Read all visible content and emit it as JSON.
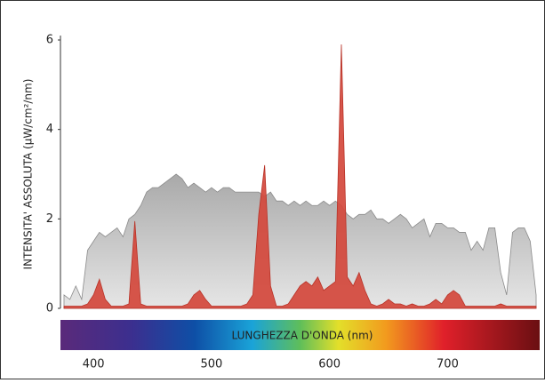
{
  "chart_data": {
    "type": "area",
    "y_label": "INTENSITA' ASSOLUTA (µW/cm²/nm)",
    "x_label": "LUNGHEZZA D'ONDA (nm)",
    "x": [
      375,
      380,
      385,
      390,
      395,
      400,
      405,
      410,
      415,
      420,
      425,
      430,
      435,
      440,
      445,
      450,
      455,
      460,
      465,
      470,
      475,
      480,
      485,
      490,
      495,
      500,
      505,
      510,
      515,
      520,
      525,
      530,
      535,
      540,
      545,
      550,
      555,
      560,
      565,
      570,
      575,
      580,
      585,
      590,
      595,
      600,
      605,
      610,
      615,
      620,
      625,
      630,
      635,
      640,
      645,
      650,
      655,
      660,
      665,
      670,
      675,
      680,
      685,
      690,
      695,
      700,
      705,
      710,
      715,
      720,
      725,
      730,
      735,
      740,
      745,
      750,
      755,
      760,
      765,
      770,
      775
    ],
    "series": [
      {
        "color": "#bdbdbd",
        "values": [
          0.3,
          0.2,
          0.5,
          0.2,
          1.3,
          1.5,
          1.7,
          1.6,
          1.7,
          1.8,
          1.6,
          2.0,
          2.1,
          2.3,
          2.6,
          2.7,
          2.7,
          2.8,
          2.9,
          3.0,
          2.9,
          2.7,
          2.8,
          2.7,
          2.6,
          2.7,
          2.6,
          2.7,
          2.7,
          2.6,
          2.6,
          2.6,
          2.6,
          2.6,
          2.5,
          2.6,
          2.4,
          2.4,
          2.3,
          2.4,
          2.3,
          2.4,
          2.3,
          2.3,
          2.4,
          2.3,
          2.4,
          2.3,
          2.1,
          2.0,
          2.1,
          2.1,
          2.2,
          2.0,
          2.0,
          1.9,
          2.0,
          2.1,
          2.0,
          1.8,
          1.9,
          2.0,
          1.6,
          1.9,
          1.9,
          1.8,
          1.8,
          1.7,
          1.7,
          1.3,
          1.5,
          1.3,
          1.8,
          1.8,
          0.8,
          0.3,
          1.7,
          1.8,
          1.8,
          1.5,
          0.3
        ]
      },
      {
        "color": "#d4483c",
        "values": [
          0.05,
          0.05,
          0.05,
          0.05,
          0.1,
          0.3,
          0.65,
          0.2,
          0.05,
          0.05,
          0.05,
          0.1,
          1.95,
          0.1,
          0.05,
          0.05,
          0.05,
          0.05,
          0.05,
          0.05,
          0.05,
          0.1,
          0.3,
          0.4,
          0.2,
          0.05,
          0.05,
          0.05,
          0.05,
          0.05,
          0.05,
          0.1,
          0.3,
          2.1,
          3.2,
          0.5,
          0.05,
          0.05,
          0.1,
          0.3,
          0.5,
          0.6,
          0.5,
          0.7,
          0.4,
          0.5,
          0.6,
          5.9,
          0.7,
          0.5,
          0.8,
          0.4,
          0.1,
          0.05,
          0.1,
          0.2,
          0.1,
          0.1,
          0.05,
          0.1,
          0.05,
          0.05,
          0.1,
          0.2,
          0.1,
          0.3,
          0.4,
          0.3,
          0.05,
          0.05,
          0.05,
          0.05,
          0.05,
          0.05,
          0.1,
          0.05,
          0.05,
          0.05,
          0.05,
          0.05,
          0.05
        ]
      }
    ],
    "xlim": [
      372,
      778
    ],
    "ylim": [
      0,
      6
    ],
    "xticks": [
      400,
      500,
      600,
      700
    ],
    "yticks": [
      0,
      2,
      4,
      6
    ]
  }
}
